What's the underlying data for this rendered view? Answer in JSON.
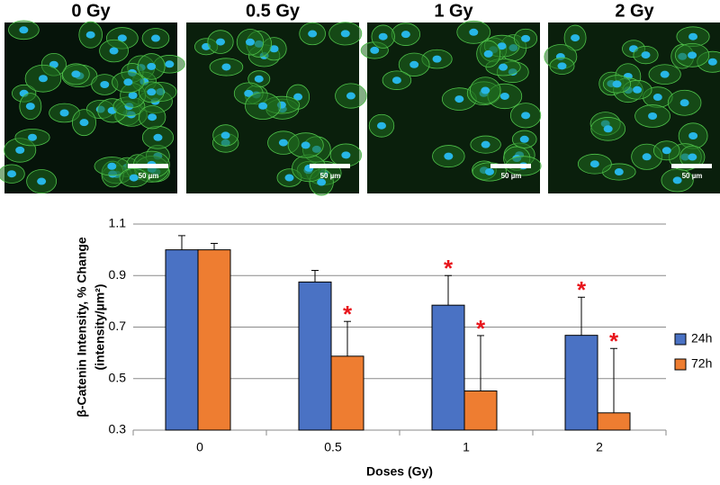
{
  "panels": [
    {
      "label": "0 Gy",
      "scale_bar": "50 µm"
    },
    {
      "label": "0.5 Gy",
      "scale_bar": "50 µm"
    },
    {
      "label": "1 Gy",
      "scale_bar": "50 µm"
    },
    {
      "label": "2 Gy",
      "scale_bar": "50 µm"
    }
  ],
  "chart_data": {
    "type": "bar",
    "xlabel": "Doses (Gy)",
    "ylabel": [
      "β-Catenin Intensity, % Change",
      "(intensity/µm²)"
    ],
    "categories": [
      "0",
      "0.5",
      "1",
      "2"
    ],
    "series": [
      {
        "name": "24h",
        "color": "#4a72c4",
        "values": [
          1.0,
          0.875,
          0.785,
          0.668
        ],
        "errors": [
          0.055,
          0.045,
          0.115,
          0.148
        ]
      },
      {
        "name": "72h",
        "color": "#ee7d31",
        "values": [
          1.0,
          0.587,
          0.452,
          0.367
        ],
        "errors": [
          0.025,
          0.135,
          0.215,
          0.25
        ]
      }
    ],
    "annotations": [
      {
        "text": "*",
        "series": 1,
        "category": 1
      },
      {
        "text": "*",
        "series": 0,
        "category": 2
      },
      {
        "text": "*",
        "series": 1,
        "category": 2
      },
      {
        "text": "*",
        "series": 0,
        "category": 3
      },
      {
        "text": "*",
        "series": 1,
        "category": 3
      }
    ],
    "annotation_color": "#e8141b",
    "ylim": [
      0.3,
      1.1
    ],
    "yticks": [
      0.3,
      0.5,
      0.7,
      0.9,
      1.1
    ],
    "grid": true,
    "legend": "right"
  }
}
